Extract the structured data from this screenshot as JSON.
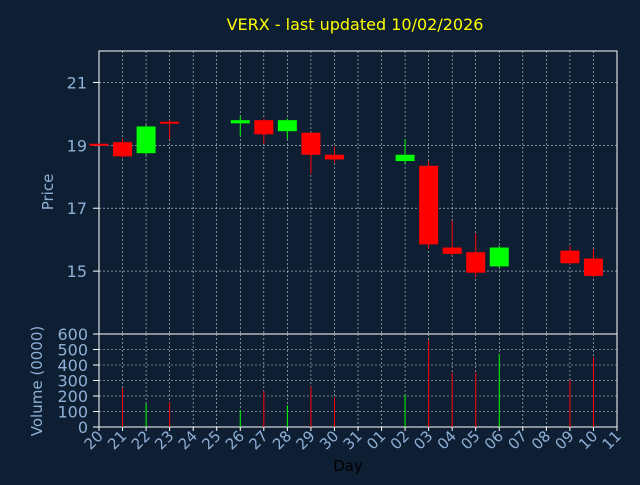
{
  "chart_data": {
    "type": "candlestick",
    "title": "VERX - last updated 10/02/2026",
    "xlabel": "Day",
    "ylabel_price": "Price",
    "ylabel_volume": "Volume (0000)",
    "categories": [
      "20",
      "21",
      "22",
      "23",
      "24",
      "25",
      "26",
      "27",
      "28",
      "29",
      "30",
      "31",
      "01",
      "02",
      "03",
      "04",
      "05",
      "06",
      "07",
      "08",
      "09",
      "10",
      "11"
    ],
    "price_ylim": [
      13.0,
      22.0
    ],
    "price_ticks": [
      15,
      17,
      19,
      21
    ],
    "volume_ylim": [
      0,
      600
    ],
    "volume_ticks": [
      0,
      100,
      200,
      300,
      400,
      500,
      600
    ],
    "grid": true,
    "colors": {
      "background": "#0f1f33",
      "up": "#00ff00",
      "down": "#ff0000",
      "title": "#ffff00",
      "axis_text": "#8fb0d6",
      "grid": "#ffffff"
    },
    "candles": [
      {
        "day": "20",
        "open": 19.05,
        "high": 19.05,
        "low": 19.0,
        "close": 19.0
      },
      {
        "day": "21",
        "open": 19.1,
        "high": 19.2,
        "low": 18.6,
        "close": 18.65
      },
      {
        "day": "22",
        "open": 18.75,
        "high": 19.65,
        "low": 18.7,
        "close": 19.6
      },
      {
        "day": "23",
        "open": 19.75,
        "high": 19.8,
        "low": 19.2,
        "close": 19.7
      },
      {
        "day": "26",
        "open": 19.7,
        "high": 19.95,
        "low": 19.3,
        "close": 19.8
      },
      {
        "day": "27",
        "open": 19.8,
        "high": 19.85,
        "low": 19.05,
        "close": 19.35
      },
      {
        "day": "28",
        "open": 19.45,
        "high": 19.85,
        "low": 19.2,
        "close": 19.8
      },
      {
        "day": "29",
        "open": 19.4,
        "high": 19.4,
        "low": 18.1,
        "close": 18.7
      },
      {
        "day": "30",
        "open": 18.7,
        "high": 18.95,
        "low": 18.45,
        "close": 18.55
      },
      {
        "day": "02",
        "open": 18.5,
        "high": 19.2,
        "low": 18.4,
        "close": 18.7
      },
      {
        "day": "03",
        "open": 18.35,
        "high": 18.5,
        "low": 15.7,
        "close": 15.85
      },
      {
        "day": "04",
        "open": 15.75,
        "high": 16.6,
        "low": 15.5,
        "close": 15.55
      },
      {
        "day": "05",
        "open": 15.6,
        "high": 16.2,
        "low": 14.8,
        "close": 14.95
      },
      {
        "day": "06",
        "open": 15.15,
        "high": 15.8,
        "low": 15.1,
        "close": 15.75
      },
      {
        "day": "09",
        "open": 15.65,
        "high": 15.8,
        "low": 15.2,
        "close": 15.25
      },
      {
        "day": "10",
        "open": 15.4,
        "high": 15.7,
        "low": 14.8,
        "close": 14.85
      }
    ],
    "volumes": [
      {
        "day": "21",
        "value": 250
      },
      {
        "day": "22",
        "value": 150
      },
      {
        "day": "23",
        "value": 160
      },
      {
        "day": "26",
        "value": 110
      },
      {
        "day": "27",
        "value": 230
      },
      {
        "day": "28",
        "value": 140
      },
      {
        "day": "29",
        "value": 260
      },
      {
        "day": "30",
        "value": 190
      },
      {
        "day": "02",
        "value": 210
      },
      {
        "day": "03",
        "value": 560
      },
      {
        "day": "04",
        "value": 350
      },
      {
        "day": "05",
        "value": 350
      },
      {
        "day": "06",
        "value": 470
      },
      {
        "day": "09",
        "value": 300
      },
      {
        "day": "10",
        "value": 450
      }
    ]
  }
}
